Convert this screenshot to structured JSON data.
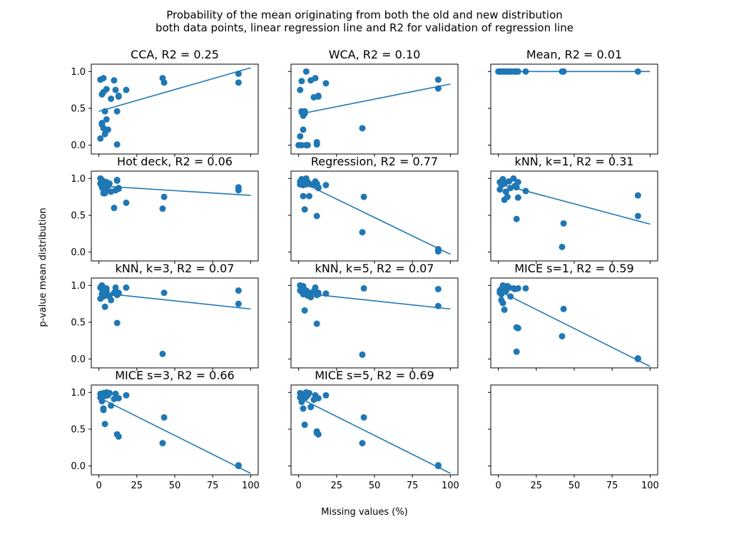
{
  "figure": {
    "title_line1": "Probability of the mean originating from both the old and new distribution",
    "title_line2": "both data points, linear regression line and R2 for validation of regression line",
    "xlabel": "Missing values (%)",
    "ylabel": "p-value mean distribution",
    "colors": {
      "marker": "#1f77b4",
      "line": "#1f77b4",
      "axes": "#000000",
      "background": "#ffffff"
    }
  },
  "chart_data": [
    {
      "type": "scatter",
      "title": "CCA, R2 = 0.25",
      "x": [
        1,
        2,
        3,
        4,
        2,
        5,
        6,
        8,
        10,
        11,
        12,
        13,
        3,
        2,
        4,
        1,
        3,
        5,
        12,
        13,
        18,
        42,
        43,
        92,
        92
      ],
      "y": [
        0.89,
        0.69,
        0.72,
        0.46,
        0.3,
        0.35,
        0.21,
        0.63,
        0.88,
        0.75,
        0.46,
        0.67,
        0.23,
        0.28,
        0.15,
        0.09,
        0.91,
        0.76,
        0.01,
        0.66,
        0.75,
        0.91,
        0.85,
        0.97,
        0.85
      ],
      "fit": {
        "x": [
          0,
          100
        ],
        "y": [
          0.46,
          1.05
        ]
      }
    },
    {
      "type": "scatter",
      "title": "WCA, R2 = 0.10",
      "x": [
        1,
        2,
        3,
        4,
        2,
        5,
        6,
        8,
        10,
        11,
        12,
        13,
        3,
        2,
        4,
        1,
        3,
        5,
        12,
        13,
        18,
        42,
        92,
        92,
        0
      ],
      "y": [
        0.75,
        0.87,
        0.4,
        0.43,
        0.46,
        1.0,
        0.0,
        0.88,
        0.65,
        0.91,
        0.04,
        0.67,
        0.21,
        0.0,
        0.46,
        0.12,
        0.44,
        0.0,
        0.01,
        0.66,
        0.84,
        0.23,
        0.89,
        0.77,
        0.0
      ],
      "fit": {
        "x": [
          0,
          100
        ],
        "y": [
          0.42,
          0.83
        ]
      }
    },
    {
      "type": "scatter",
      "title": "Mean, R2 = 0.01",
      "x": [
        0,
        1,
        2,
        3,
        4,
        5,
        6,
        7,
        8,
        10,
        11,
        12,
        13,
        18,
        42,
        43,
        92
      ],
      "y": [
        1.0,
        1.0,
        1.0,
        1.0,
        1.0,
        1.0,
        1.0,
        1.0,
        1.0,
        1.0,
        1.0,
        1.0,
        1.0,
        1.0,
        1.0,
        1.0,
        1.0
      ],
      "fit": {
        "x": [
          0,
          100
        ],
        "y": [
          1.0,
          1.0
        ]
      }
    },
    {
      "type": "scatter",
      "title": "Hot deck, R2 = 0.06",
      "x": [
        1,
        2,
        3,
        4,
        2,
        5,
        6,
        8,
        10,
        11,
        12,
        13,
        3,
        2,
        4,
        1,
        3,
        5,
        12,
        13,
        18,
        42,
        43,
        92,
        92,
        7
      ],
      "y": [
        0.93,
        0.98,
        0.85,
        0.8,
        0.88,
        0.95,
        0.9,
        0.82,
        0.6,
        0.84,
        0.97,
        0.87,
        0.8,
        0.93,
        0.82,
        1.0,
        0.96,
        0.85,
        0.98,
        0.86,
        0.67,
        0.59,
        0.75,
        0.88,
        0.84,
        0.93
      ],
      "fit": {
        "x": [
          0,
          100
        ],
        "y": [
          0.9,
          0.77
        ]
      }
    },
    {
      "type": "scatter",
      "title": "Regression, R2 = 0.77",
      "x": [
        1,
        2,
        3,
        4,
        2,
        5,
        6,
        8,
        10,
        11,
        12,
        13,
        3,
        2,
        4,
        1,
        3,
        5,
        12,
        13,
        18,
        42,
        43,
        92,
        92,
        7
      ],
      "y": [
        0.92,
        0.97,
        0.76,
        0.58,
        0.99,
        1.0,
        0.95,
        0.92,
        0.92,
        0.96,
        0.49,
        0.88,
        0.95,
        0.93,
        0.98,
        0.96,
        0.91,
        0.92,
        0.93,
        0.87,
        0.91,
        0.27,
        0.75,
        0.04,
        0.01,
        0.76
      ],
      "fit": {
        "x": [
          0,
          100
        ],
        "y": [
          0.97,
          -0.03
        ]
      }
    },
    {
      "type": "scatter",
      "title": "kNN, k=1, R2 = 0.31",
      "x": [
        1,
        2,
        3,
        4,
        2,
        5,
        6,
        8,
        10,
        11,
        12,
        13,
        3,
        2,
        4,
        1,
        3,
        5,
        12,
        13,
        18,
        42,
        43,
        92,
        92,
        7
      ],
      "y": [
        0.85,
        0.94,
        0.99,
        0.71,
        0.96,
        0.82,
        0.75,
        0.87,
        1.0,
        0.9,
        0.45,
        0.74,
        0.97,
        0.91,
        0.93,
        0.95,
        0.98,
        0.82,
        0.88,
        0.95,
        0.83,
        0.07,
        0.39,
        0.77,
        0.49,
        0.96
      ],
      "fit": {
        "x": [
          0,
          100
        ],
        "y": [
          0.93,
          0.38
        ]
      }
    },
    {
      "type": "scatter",
      "title": "kNN, k=3, R2 = 0.07",
      "x": [
        1,
        2,
        3,
        4,
        2,
        5,
        6,
        8,
        10,
        11,
        12,
        13,
        3,
        2,
        4,
        1,
        3,
        5,
        12,
        13,
        18,
        42,
        43,
        92,
        92,
        7
      ],
      "y": [
        0.82,
        0.95,
        0.97,
        0.71,
        0.88,
        0.92,
        0.86,
        0.8,
        0.9,
        0.97,
        0.49,
        0.89,
        0.92,
        1.0,
        0.94,
        0.97,
        0.85,
        0.96,
        0.87,
        0.9,
        0.97,
        0.07,
        0.9,
        0.93,
        0.75,
        0.86
      ],
      "fit": {
        "x": [
          0,
          100
        ],
        "y": [
          0.9,
          0.68
        ]
      }
    },
    {
      "type": "scatter",
      "title": "kNN, k=5, R2 = 0.07",
      "x": [
        1,
        2,
        3,
        4,
        2,
        5,
        6,
        8,
        10,
        11,
        12,
        13,
        3,
        2,
        4,
        1,
        3,
        5,
        12,
        13,
        18,
        42,
        43,
        92,
        92,
        7
      ],
      "y": [
        0.93,
        0.97,
        0.88,
        0.66,
        0.98,
        0.93,
        0.86,
        0.84,
        0.92,
        0.97,
        0.48,
        0.88,
        0.99,
        0.96,
        0.9,
        1.0,
        0.95,
        0.92,
        0.87,
        0.9,
        0.89,
        0.06,
        0.96,
        0.95,
        0.72,
        0.9
      ],
      "fit": {
        "x": [
          0,
          100
        ],
        "y": [
          0.9,
          0.68
        ]
      }
    },
    {
      "type": "scatter",
      "title": "MICE s=1, R2 = 0.59",
      "x": [
        1,
        2,
        3,
        4,
        2,
        5,
        6,
        8,
        10,
        11,
        12,
        13,
        3,
        2,
        4,
        1,
        3,
        5,
        12,
        13,
        18,
        42,
        43,
        92,
        92,
        7
      ],
      "y": [
        0.93,
        0.88,
        0.76,
        0.67,
        0.8,
        0.97,
        0.99,
        0.85,
        0.96,
        0.95,
        0.43,
        0.42,
        1.0,
        0.95,
        0.97,
        0.9,
        0.98,
        0.92,
        0.1,
        0.96,
        0.96,
        0.31,
        0.68,
        0.0,
        0.01,
        0.97
      ],
      "fit": {
        "x": [
          0,
          100
        ],
        "y": [
          0.93,
          -0.1
        ]
      }
    },
    {
      "type": "scatter",
      "title": "MICE s=3, R2 = 0.66",
      "x": [
        1,
        2,
        3,
        4,
        2,
        5,
        6,
        8,
        10,
        11,
        12,
        13,
        3,
        2,
        4,
        1,
        3,
        5,
        12,
        13,
        18,
        42,
        43,
        92,
        92,
        7
      ],
      "y": [
        0.93,
        0.88,
        0.78,
        0.57,
        0.98,
        1.0,
        0.96,
        0.82,
        0.91,
        0.98,
        0.43,
        0.4,
        0.76,
        0.96,
        0.95,
        0.98,
        0.99,
        0.97,
        0.93,
        0.92,
        0.96,
        0.31,
        0.66,
        0.0,
        0.01,
        0.99
      ],
      "fit": {
        "x": [
          0,
          100
        ],
        "y": [
          0.93,
          -0.1
        ]
      }
    },
    {
      "type": "scatter",
      "title": "MICE s=5, R2 = 0.69",
      "x": [
        1,
        2,
        3,
        4,
        2,
        5,
        6,
        8,
        10,
        11,
        12,
        13,
        3,
        2,
        4,
        1,
        3,
        5,
        12,
        13,
        18,
        42,
        43,
        92,
        92,
        7
      ],
      "y": [
        0.93,
        0.87,
        0.78,
        0.56,
        0.98,
        1.0,
        0.96,
        0.8,
        0.9,
        0.96,
        0.47,
        0.43,
        0.96,
        0.97,
        0.92,
        0.99,
        0.95,
        0.94,
        0.45,
        0.92,
        0.96,
        0.31,
        0.66,
        0.0,
        0.01,
        0.99
      ],
      "fit": {
        "x": [
          0,
          100
        ],
        "y": [
          0.93,
          -0.1
        ]
      }
    },
    {
      "type": "scatter",
      "title": "",
      "x": [],
      "y": []
    }
  ],
  "axes": {
    "xlim": [
      -5,
      105
    ],
    "ylim": [
      -0.12,
      1.1
    ],
    "xticks": [
      0,
      25,
      50,
      75,
      100
    ],
    "yticks": [
      0.0,
      0.5,
      1.0
    ],
    "xtick_labels": [
      "0",
      "25",
      "50",
      "75",
      "100"
    ],
    "ytick_labels": [
      "0.0",
      "0.5",
      "1.0"
    ],
    "grid": false,
    "legend": "none",
    "grid_layout": {
      "rows": 4,
      "cols": 3
    }
  }
}
